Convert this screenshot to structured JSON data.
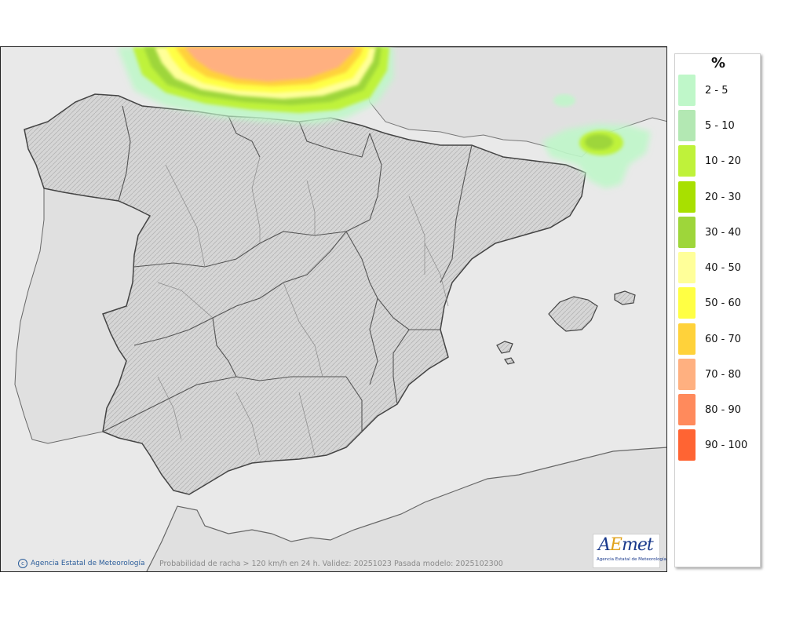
{
  "map": {
    "caption": "Probabilidad de racha > 120 km/h en 24 h. Validez: 20251023 Pasada modelo: 2025102300",
    "credit": "Agencia Estatal de Meteorología",
    "logo": {
      "text_a": "A",
      "text_e": "E",
      "text_rest": "met",
      "subtitle": "Agencia Estatal de Meteorología"
    },
    "colors": {
      "sea": "#e9e9e9",
      "land": "#d9d9d9",
      "border": "#555555"
    }
  },
  "legend": {
    "unit": "%",
    "items": [
      {
        "label": "2 - 5",
        "color": "#bff7c9"
      },
      {
        "label": "5 - 10",
        "color": "#b3e8b3"
      },
      {
        "label": "10 - 20",
        "color": "#bff23a"
      },
      {
        "label": "20 - 30",
        "color": "#a8e000"
      },
      {
        "label": "30 - 40",
        "color": "#9ed63a"
      },
      {
        "label": "40 - 50",
        "color": "#ffff99"
      },
      {
        "label": "50 - 60",
        "color": "#ffff44"
      },
      {
        "label": "60 - 70",
        "color": "#ffd23a"
      },
      {
        "label": "70 - 80",
        "color": "#ffb080"
      },
      {
        "label": "80 - 90",
        "color": "#ff8a5c"
      },
      {
        "label": "90 - 100",
        "color": "#ff6433"
      }
    ]
  }
}
